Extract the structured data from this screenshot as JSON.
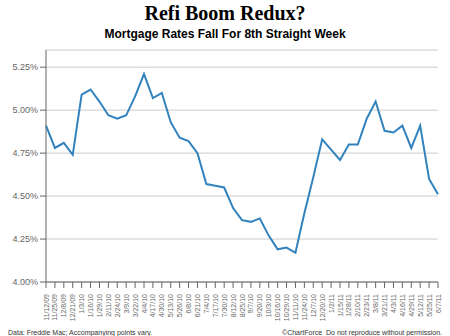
{
  "chart_data": {
    "type": "line",
    "title": "Refi Boom Redux?",
    "subtitle": "Mortgage Rates Fall For 8th Straight Week",
    "annotations": [
      "Data: Freddie Mac; Accompanying points vary.",
      "©ChartForce  Do not reproduce without permission."
    ],
    "categories": [
      "11/12/09",
      "11/25/09",
      "12/8/09",
      "12/21/09",
      "1/3/10",
      "1/16/10",
      "1/29/10",
      "2/11/10",
      "2/24/10",
      "3/9/10",
      "3/22/10",
      "4/4/10",
      "4/17/10",
      "4/30/10",
      "5/13/10",
      "5/26/10",
      "6/8/10",
      "6/21/10",
      "7/4/10",
      "7/17/10",
      "7/30/10",
      "8/12/10",
      "8/25/10",
      "9/7/10",
      "9/20/10",
      "10/3/10",
      "10/16/10",
      "10/29/10",
      "11/11/10",
      "11/24/10",
      "12/7/10",
      "12/20/10",
      "1/2/11",
      "1/15/11",
      "1/28/11",
      "2/10/11",
      "2/23/11",
      "3/8/11",
      "3/21/11",
      "4/3/11",
      "4/16/11",
      "4/29/11",
      "5/12/11",
      "5/25/11",
      "6/7/11"
    ],
    "values": [
      4.91,
      4.78,
      4.81,
      4.74,
      5.09,
      5.12,
      5.05,
      4.97,
      4.95,
      4.97,
      5.08,
      5.21,
      5.07,
      5.1,
      4.93,
      4.84,
      4.82,
      4.75,
      4.57,
      4.56,
      4.55,
      4.43,
      4.36,
      4.35,
      4.37,
      4.27,
      4.19,
      4.2,
      4.17,
      4.4,
      4.61,
      4.83,
      4.77,
      4.71,
      4.8,
      4.8,
      4.95,
      5.05,
      4.88,
      4.87,
      4.91,
      4.78,
      4.91,
      4.6,
      4.51
    ],
    "ylim": [
      4.0,
      5.35
    ],
    "yticks": [
      {
        "value": 4.0,
        "label": "4.00%"
      },
      {
        "value": 4.25,
        "label": "4.25%"
      },
      {
        "value": 4.5,
        "label": "4.50%"
      },
      {
        "value": 4.75,
        "label": "4.75%"
      },
      {
        "value": 5.0,
        "label": "5.00%"
      },
      {
        "value": 5.25,
        "label": "5.25%"
      }
    ],
    "grid": true
  }
}
